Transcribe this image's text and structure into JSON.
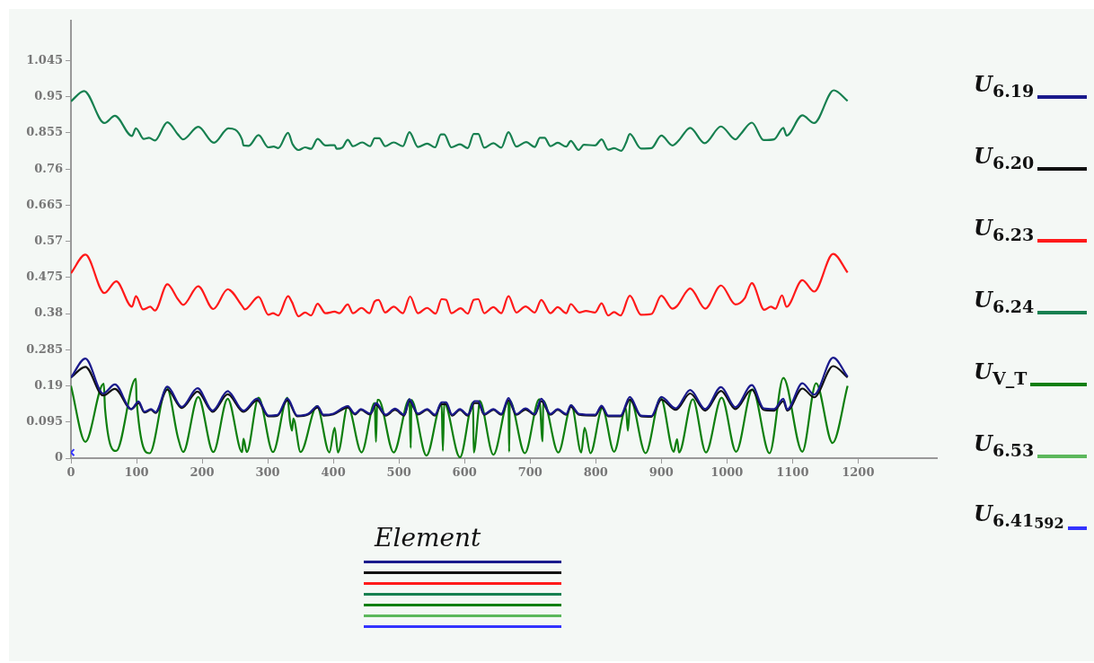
{
  "chart_data": {
    "type": "line",
    "xlabel": "Element",
    "xlim": [
      0,
      1320
    ],
    "xticks": [
      0,
      100,
      200,
      300,
      400,
      500,
      600,
      700,
      800,
      900,
      1000,
      1100,
      1200
    ],
    "ylim": [
      0,
      1.15
    ],
    "yticks": [
      0,
      0.095,
      0.19,
      0.285,
      0.38,
      0.475,
      0.57,
      0.665,
      0.76,
      0.855,
      0.95,
      1.045
    ],
    "legend": "right",
    "marker": "none",
    "series": [
      {
        "name": "U$_{6.19}$",
        "color": "#1a1a8c",
        "x": [
          0,
          22,
          49,
          67,
          92,
          103,
          112,
          122,
          129,
          147,
          169,
          193,
          216,
          239,
          263,
          284,
          301,
          315,
          330,
          345,
          362,
          376,
          385,
          400,
          422,
          433,
          442,
          456,
          465,
          480,
          494,
          508,
          516,
          529,
          543,
          555,
          565,
          572,
          581,
          593,
          605,
          615,
          621,
          630,
          644,
          656,
          667,
          679,
          693,
          707,
          717,
          731,
          742,
          755,
          762,
          775,
          799,
          809,
          819,
          838,
          852,
          869,
          885,
          900,
          922,
          944,
          967,
          991,
          1013,
          1038,
          1056,
          1072,
          1086,
          1092,
          1115,
          1133,
          1162,
          1184
        ],
        "values": [
          0.212,
          0.262,
          0.17,
          0.194,
          0.129,
          0.149,
          0.122,
          0.129,
          0.121,
          0.188,
          0.135,
          0.184,
          0.125,
          0.176,
          0.125,
          0.157,
          0.112,
          0.114,
          0.157,
          0.112,
          0.117,
          0.137,
          0.114,
          0.117,
          0.137,
          0.117,
          0.129,
          0.117,
          0.145,
          0.114,
          0.13,
          0.114,
          0.155,
          0.117,
          0.129,
          0.114,
          0.147,
          0.147,
          0.114,
          0.129,
          0.114,
          0.15,
          0.15,
          0.116,
          0.129,
          0.116,
          0.158,
          0.116,
          0.131,
          0.116,
          0.156,
          0.116,
          0.129,
          0.116,
          0.139,
          0.116,
          0.114,
          0.138,
          0.112,
          0.112,
          0.161,
          0.112,
          0.111,
          0.161,
          0.131,
          0.179,
          0.129,
          0.187,
          0.134,
          0.192,
          0.131,
          0.129,
          0.156,
          0.128,
          0.197,
          0.167,
          0.264,
          0.214
        ]
      },
      {
        "name": "U$_{6.20}$",
        "color": "#111111",
        "x": [
          0,
          22,
          49,
          67,
          92,
          103,
          112,
          122,
          129,
          147,
          169,
          193,
          216,
          239,
          263,
          284,
          301,
          315,
          330,
          345,
          362,
          376,
          385,
          400,
          422,
          433,
          442,
          456,
          465,
          480,
          494,
          508,
          516,
          529,
          543,
          555,
          565,
          572,
          581,
          593,
          605,
          615,
          621,
          630,
          644,
          656,
          667,
          679,
          693,
          707,
          717,
          731,
          742,
          755,
          762,
          775,
          799,
          809,
          819,
          838,
          852,
          869,
          885,
          900,
          922,
          944,
          967,
          991,
          1013,
          1038,
          1056,
          1072,
          1086,
          1092,
          1115,
          1133,
          1162,
          1184
        ],
        "values": [
          0.212,
          0.24,
          0.165,
          0.182,
          0.129,
          0.145,
          0.12,
          0.127,
          0.119,
          0.18,
          0.132,
          0.175,
          0.122,
          0.168,
          0.122,
          0.152,
          0.11,
          0.112,
          0.152,
          0.11,
          0.115,
          0.133,
          0.112,
          0.115,
          0.133,
          0.115,
          0.127,
          0.115,
          0.14,
          0.112,
          0.127,
          0.112,
          0.15,
          0.115,
          0.127,
          0.112,
          0.142,
          0.142,
          0.112,
          0.127,
          0.112,
          0.145,
          0.145,
          0.114,
          0.127,
          0.114,
          0.152,
          0.114,
          0.128,
          0.114,
          0.15,
          0.114,
          0.127,
          0.114,
          0.135,
          0.114,
          0.112,
          0.134,
          0.11,
          0.11,
          0.154,
          0.11,
          0.109,
          0.154,
          0.127,
          0.17,
          0.125,
          0.177,
          0.129,
          0.18,
          0.127,
          0.125,
          0.15,
          0.125,
          0.183,
          0.16,
          0.242,
          0.212
        ]
      },
      {
        "name": "U$_{6.23}$",
        "color": "#ff1a1a",
        "x": [
          0,
          22,
          51,
          69,
          93,
          99,
          110,
          121,
          128,
          147,
          163,
          171,
          194,
          217,
          239,
          261,
          265,
          286,
          301,
          308,
          316,
          331,
          337,
          347,
          357,
          366,
          376,
          388,
          402,
          409,
          422,
          430,
          443,
          455,
          463,
          469,
          479,
          492,
          506,
          517,
          529,
          543,
          556,
          565,
          572,
          580,
          594,
          605,
          614,
          621,
          630,
          644,
          656,
          667,
          679,
          693,
          707,
          717,
          731,
          742,
          755,
          762,
          775,
          785,
          799,
          809,
          819,
          828,
          838,
          852,
          869,
          885,
          900,
          917,
          924,
          944,
          967,
          991,
          1013,
          1027,
          1038,
          1057,
          1067,
          1074,
          1084,
          1091,
          1115,
          1133,
          1162,
          1184
        ],
        "values": [
          0.486,
          0.535,
          0.434,
          0.465,
          0.398,
          0.426,
          0.391,
          0.398,
          0.388,
          0.457,
          0.418,
          0.403,
          0.452,
          0.392,
          0.444,
          0.4,
          0.391,
          0.424,
          0.377,
          0.381,
          0.375,
          0.426,
          0.41,
          0.373,
          0.383,
          0.375,
          0.406,
          0.381,
          0.385,
          0.381,
          0.404,
          0.381,
          0.395,
          0.381,
          0.412,
          0.416,
          0.383,
          0.398,
          0.381,
          0.425,
          0.381,
          0.395,
          0.38,
          0.418,
          0.416,
          0.381,
          0.394,
          0.38,
          0.416,
          0.418,
          0.381,
          0.397,
          0.381,
          0.426,
          0.383,
          0.399,
          0.383,
          0.416,
          0.381,
          0.397,
          0.381,
          0.405,
          0.383,
          0.387,
          0.383,
          0.407,
          0.375,
          0.384,
          0.375,
          0.427,
          0.377,
          0.379,
          0.427,
          0.393,
          0.4,
          0.446,
          0.393,
          0.454,
          0.404,
          0.42,
          0.46,
          0.39,
          0.398,
          0.393,
          0.428,
          0.398,
          0.468,
          0.438,
          0.537,
          0.488
        ]
      },
      {
        "name": "U$_{6.24}$",
        "color": "#178050",
        "x": [
          0,
          20,
          51,
          67,
          93,
          99,
          111,
          119,
          128,
          147,
          163,
          171,
          194,
          218,
          240,
          261,
          263,
          271,
          286,
          301,
          309,
          316,
          331,
          338,
          347,
          357,
          366,
          376,
          388,
          402,
          405,
          414,
          422,
          430,
          444,
          456,
          463,
          470,
          479,
          492,
          506,
          516,
          529,
          543,
          555,
          564,
          569,
          580,
          593,
          605,
          614,
          621,
          630,
          644,
          656,
          667,
          679,
          694,
          707,
          715,
          722,
          731,
          742,
          755,
          762,
          774,
          782,
          799,
          809,
          819,
          828,
          839,
          846,
          852,
          869,
          885,
          900,
          917,
          926,
          944,
          966,
          991,
          1013,
          1021,
          1038,
          1056,
          1072,
          1086,
          1091,
          1115,
          1133,
          1163,
          1184
        ],
        "values": [
          0.938,
          0.965,
          0.881,
          0.9,
          0.847,
          0.867,
          0.839,
          0.842,
          0.835,
          0.883,
          0.851,
          0.838,
          0.871,
          0.829,
          0.867,
          0.837,
          0.822,
          0.821,
          0.849,
          0.817,
          0.819,
          0.815,
          0.855,
          0.825,
          0.81,
          0.817,
          0.813,
          0.839,
          0.822,
          0.823,
          0.813,
          0.817,
          0.837,
          0.82,
          0.83,
          0.82,
          0.841,
          0.841,
          0.82,
          0.83,
          0.82,
          0.857,
          0.818,
          0.827,
          0.817,
          0.851,
          0.851,
          0.817,
          0.825,
          0.815,
          0.852,
          0.852,
          0.816,
          0.828,
          0.816,
          0.857,
          0.819,
          0.831,
          0.818,
          0.842,
          0.842,
          0.82,
          0.829,
          0.819,
          0.834,
          0.81,
          0.824,
          0.822,
          0.838,
          0.811,
          0.815,
          0.808,
          0.828,
          0.852,
          0.814,
          0.815,
          0.848,
          0.822,
          0.834,
          0.868,
          0.828,
          0.872,
          0.838,
          0.852,
          0.882,
          0.836,
          0.838,
          0.868,
          0.848,
          0.901,
          0.881,
          0.967,
          0.939
        ]
      },
      {
        "name": "U$_{V_T}$",
        "color": "#0f7f0f",
        "x": [
          0,
          22,
          50,
          52,
          69,
          99,
          100,
          120,
          146,
          163,
          171,
          194,
          217,
          239,
          261,
          263,
          268,
          286,
          308,
          330,
          334,
          337,
          339,
          350,
          375,
          394,
          402,
          407,
          422,
          443,
          463,
          465,
          467,
          469,
          492,
          516,
          518,
          519,
          542,
          565,
          567,
          569,
          593,
          613,
          614,
          621,
          623,
          644,
          667,
          668,
          669,
          692,
          714,
          719,
          720,
          743,
          763,
          778,
          783,
          792,
          810,
          828,
          846,
          849,
          853,
          876,
          899,
          919,
          924,
          927,
          948,
          968,
          992,
          1014,
          1039,
          1065,
          1086,
          1115,
          1136,
          1161,
          1184
        ],
        "values": [
          0.19,
          0.043,
          0.196,
          0.129,
          0.019,
          0.209,
          0.153,
          0.013,
          0.186,
          0.055,
          0.016,
          0.161,
          0.016,
          0.156,
          0.016,
          0.051,
          0.016,
          0.159,
          0.016,
          0.159,
          0.096,
          0.072,
          0.104,
          0.016,
          0.137,
          0.015,
          0.08,
          0.015,
          0.137,
          0.015,
          0.145,
          0.043,
          0.153,
          0.153,
          0.015,
          0.155,
          0.027,
          0.153,
          0.007,
          0.145,
          0.019,
          0.145,
          0.002,
          0.147,
          0.015,
          0.12,
          0.151,
          0.009,
          0.151,
          0.017,
          0.151,
          0.013,
          0.155,
          0.044,
          0.151,
          0.015,
          0.139,
          0.015,
          0.08,
          0.013,
          0.131,
          0.017,
          0.131,
          0.072,
          0.155,
          0.013,
          0.159,
          0.017,
          0.05,
          0.015,
          0.155,
          0.015,
          0.159,
          0.017,
          0.181,
          0.013,
          0.211,
          0.017,
          0.197,
          0.04,
          0.19
        ]
      },
      {
        "name": "U$_{6.53}$",
        "color": "#5cb85c"
      },
      {
        "name": "U$_{6.41}$$_{592}$",
        "color": "#3333ff",
        "marker": "cross",
        "x": [
          0
        ],
        "values": [
          0.015
        ]
      }
    ]
  }
}
